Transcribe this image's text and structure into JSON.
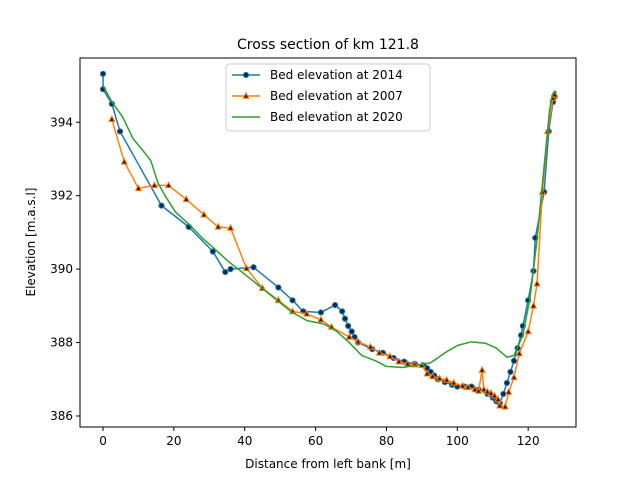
{
  "chart_data": {
    "type": "line",
    "title": "Cross section of km 121.8",
    "xlabel": "Distance from left bank [m]",
    "ylabel": "Elevation [m.a.s.l]",
    "xlim": [
      -6.5,
      133.5
    ],
    "ylim": [
      385.7,
      395.75
    ],
    "xticks": [
      0,
      20,
      40,
      60,
      80,
      100,
      120
    ],
    "yticks": [
      386,
      388,
      390,
      392,
      394
    ],
    "grid": false,
    "legend": "top-center",
    "series": [
      {
        "name": "Bed elevation at 2014",
        "color": "#1f77b4",
        "marker": "circle",
        "marker_face": "#0d2a4a",
        "points": [
          [
            0.0,
            395.32
          ],
          [
            0.0,
            394.9
          ],
          [
            2.5,
            394.5
          ],
          [
            4.8,
            393.75
          ],
          [
            16.5,
            391.73
          ],
          [
            24.2,
            391.15
          ],
          [
            31.0,
            390.48
          ],
          [
            34.5,
            389.92
          ],
          [
            36.0,
            390.0
          ],
          [
            42.5,
            390.05
          ],
          [
            49.5,
            389.5
          ],
          [
            53.5,
            389.15
          ],
          [
            56.5,
            388.85
          ],
          [
            61.5,
            388.82
          ],
          [
            65.5,
            389.02
          ],
          [
            67.5,
            388.85
          ],
          [
            68.3,
            388.65
          ],
          [
            69.2,
            388.45
          ],
          [
            70.2,
            388.3
          ],
          [
            71.0,
            388.15
          ],
          [
            72.0,
            388.0
          ],
          [
            76.0,
            387.82
          ],
          [
            79.0,
            387.72
          ],
          [
            82.0,
            387.58
          ],
          [
            85.0,
            387.48
          ],
          [
            88.0,
            387.42
          ],
          [
            90.5,
            387.38
          ],
          [
            91.5,
            387.3
          ],
          [
            92.5,
            387.2
          ],
          [
            93.5,
            387.1
          ],
          [
            94.5,
            387.0
          ],
          [
            96.5,
            386.92
          ],
          [
            98.5,
            386.85
          ],
          [
            100.0,
            386.8
          ],
          [
            102.0,
            386.8
          ],
          [
            104.0,
            386.8
          ],
          [
            106.0,
            386.72
          ],
          [
            108.5,
            386.6
          ],
          [
            110.0,
            386.5
          ],
          [
            111.0,
            386.4
          ],
          [
            112.0,
            386.35
          ],
          [
            113.0,
            386.6
          ],
          [
            114.0,
            386.9
          ],
          [
            115.0,
            387.2
          ],
          [
            116.0,
            387.5
          ],
          [
            117.0,
            387.85
          ],
          [
            118.0,
            388.2
          ],
          [
            118.5,
            388.45
          ],
          [
            120.0,
            389.15
          ],
          [
            121.5,
            389.95
          ],
          [
            122.0,
            390.85
          ],
          [
            124.5,
            392.1
          ],
          [
            125.8,
            393.75
          ],
          [
            127.0,
            394.55
          ],
          [
            127.5,
            394.7
          ]
        ]
      },
      {
        "name": "Bed elevation at 2007",
        "color": "#ff7f0e",
        "marker": "triangle",
        "marker_face": "#3a1a00",
        "points": [
          [
            2.5,
            394.08
          ],
          [
            6.0,
            392.92
          ],
          [
            10.0,
            392.2
          ],
          [
            14.5,
            392.28
          ],
          [
            18.5,
            392.28
          ],
          [
            23.5,
            391.9
          ],
          [
            28.5,
            391.48
          ],
          [
            32.5,
            391.15
          ],
          [
            36.0,
            391.12
          ],
          [
            40.5,
            390.02
          ],
          [
            45.0,
            389.48
          ],
          [
            49.5,
            389.15
          ],
          [
            53.5,
            388.85
          ],
          [
            57.5,
            388.78
          ],
          [
            61.5,
            388.62
          ],
          [
            64.5,
            388.42
          ],
          [
            69.5,
            388.15
          ],
          [
            72.0,
            388.02
          ],
          [
            75.5,
            387.88
          ],
          [
            78.0,
            387.72
          ],
          [
            81.0,
            387.62
          ],
          [
            83.5,
            387.48
          ],
          [
            86.0,
            387.42
          ],
          [
            88.0,
            387.4
          ],
          [
            90.0,
            387.38
          ],
          [
            91.5,
            387.15
          ],
          [
            93.0,
            387.08
          ],
          [
            95.0,
            387.02
          ],
          [
            97.0,
            386.98
          ],
          [
            99.0,
            386.9
          ],
          [
            101.5,
            386.82
          ],
          [
            103.0,
            386.78
          ],
          [
            105.0,
            386.72
          ],
          [
            106.0,
            386.68
          ],
          [
            107.0,
            387.25
          ],
          [
            107.5,
            386.72
          ],
          [
            108.5,
            386.66
          ],
          [
            109.5,
            386.62
          ],
          [
            110.5,
            386.55
          ],
          [
            111.5,
            386.45
          ],
          [
            112.0,
            386.28
          ],
          [
            113.5,
            386.25
          ],
          [
            114.5,
            386.65
          ],
          [
            116.0,
            387.05
          ],
          [
            117.5,
            387.7
          ],
          [
            120.0,
            388.3
          ],
          [
            121.5,
            389.0
          ],
          [
            122.5,
            389.6
          ],
          [
            124.0,
            392.1
          ],
          [
            125.5,
            393.75
          ],
          [
            127.0,
            394.65
          ],
          [
            127.5,
            394.75
          ]
        ]
      },
      {
        "name": "Bed elevation at 2020",
        "color": "#2ca02c",
        "marker": "none",
        "points": [
          [
            0.0,
            395.0
          ],
          [
            2.5,
            394.55
          ],
          [
            5.5,
            394.15
          ],
          [
            8.5,
            393.55
          ],
          [
            11.5,
            393.2
          ],
          [
            13.5,
            392.95
          ],
          [
            15.5,
            392.35
          ],
          [
            17.5,
            392.0
          ],
          [
            20.5,
            391.55
          ],
          [
            24.5,
            391.2
          ],
          [
            28.0,
            390.85
          ],
          [
            31.5,
            390.55
          ],
          [
            35.5,
            390.2
          ],
          [
            39.5,
            389.9
          ],
          [
            44.0,
            389.55
          ],
          [
            48.5,
            389.2
          ],
          [
            53.0,
            388.85
          ],
          [
            57.5,
            388.6
          ],
          [
            62.5,
            388.5
          ],
          [
            66.0,
            388.3
          ],
          [
            69.5,
            388.0
          ],
          [
            73.0,
            387.65
          ],
          [
            77.0,
            387.5
          ],
          [
            80.0,
            387.35
          ],
          [
            84.5,
            387.32
          ],
          [
            88.5,
            387.38
          ],
          [
            92.5,
            387.45
          ],
          [
            96.5,
            387.72
          ],
          [
            100.0,
            387.92
          ],
          [
            104.0,
            388.02
          ],
          [
            108.0,
            387.98
          ],
          [
            111.0,
            387.85
          ],
          [
            114.0,
            387.6
          ],
          [
            116.0,
            387.65
          ],
          [
            118.5,
            388.2
          ],
          [
            120.5,
            389.2
          ],
          [
            122.5,
            390.8
          ],
          [
            124.5,
            392.8
          ],
          [
            126.0,
            394.3
          ],
          [
            126.8,
            394.75
          ],
          [
            127.5,
            394.85
          ],
          [
            128.0,
            394.8
          ]
        ]
      }
    ]
  }
}
